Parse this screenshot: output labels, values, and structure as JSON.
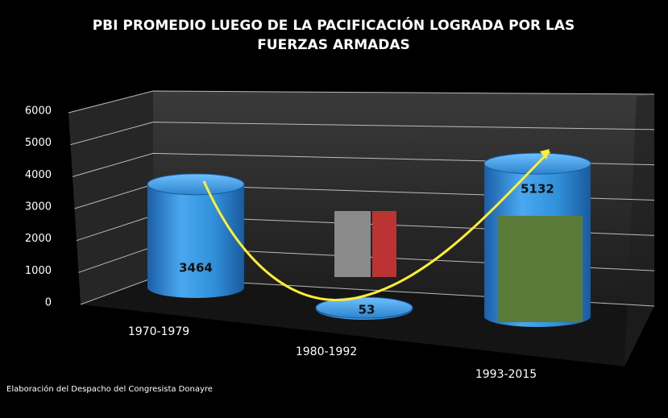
{
  "chart_data": {
    "type": "cylinder",
    "title": "PBI PROMEDIO LUEGO DE LA PACIFICACIÓN LOGRADA POR LAS FUERZAS ARMADAS",
    "categories": [
      "1970-1979",
      "1980-1992",
      "1993-2015"
    ],
    "values": [
      3464,
      53,
      5132
    ],
    "color": "#2f8fd8",
    "ylim": [
      0,
      6000
    ],
    "yticks": [
      0,
      1000,
      2000,
      3000,
      4000,
      5000,
      6000
    ],
    "grid": true,
    "note": "Elaboración del Despacho del Congresista Donayre"
  }
}
